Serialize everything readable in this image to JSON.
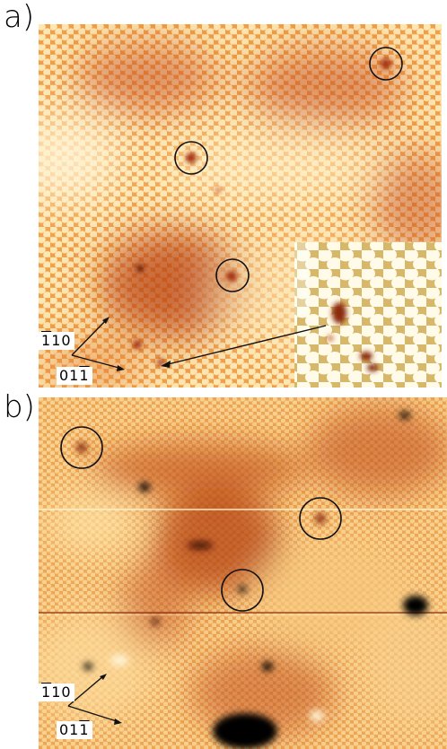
{
  "panel_a": {
    "label": "a)",
    "direction_labels": {
      "first": {
        "bar": "1",
        "rest": "10"
      },
      "second": {
        "lead": "01",
        "bar": "1"
      }
    },
    "highlighted_defects": 3,
    "has_inset": true
  },
  "panel_b": {
    "label": "b)",
    "direction_labels": {
      "first": {
        "bar": "1",
        "rest": "10"
      },
      "second": {
        "lead": "01",
        "bar": "1"
      }
    },
    "highlighted_defects": 3
  },
  "colors": {
    "bright": "#fdf0c8",
    "mid": "#f6b35a",
    "dark": "#c8521e",
    "deep": "#7a1d06",
    "black": "#000000"
  }
}
